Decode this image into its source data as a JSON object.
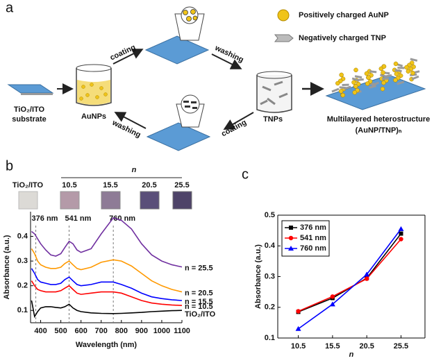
{
  "diagram": {
    "panel_label": "a",
    "legend": [
      "Positively charged AuNP",
      "Negatively charged TNP"
    ],
    "steps": [
      "coating",
      "washing",
      "coating",
      "washing"
    ],
    "substrate": [
      "TiO₂/ITO",
      "substrate"
    ],
    "beakers": [
      "AuNPs",
      "TNPs"
    ],
    "product": [
      "Multilayered heterostructure",
      "(AuNP/TNP)ₙ"
    ]
  },
  "photos": {
    "panel_label": "b",
    "heading": "n",
    "labels": [
      "TiO₂/ITO",
      "10.5",
      "15.5",
      "20.5",
      "25.5"
    ]
  },
  "chart_data": [
    {
      "type": "line",
      "x_label": "Wavelength (nm)",
      "y_label": "Absorbance (a.u.)",
      "xlim": [
        350,
        1100
      ],
      "ylim": [
        0.05,
        0.5
      ],
      "xticks": [
        400,
        500,
        600,
        700,
        800,
        900,
        1000,
        1100
      ],
      "yticks": [
        0.1,
        0.2,
        0.3,
        0.4
      ],
      "vlines": [
        {
          "value": 376,
          "label": "376 nm"
        },
        {
          "value": 541,
          "label": "541 nm"
        },
        {
          "value": 760,
          "label": "760 nm"
        }
      ],
      "series_labels": "end",
      "markers": false,
      "x": [
        355,
        370,
        385,
        400,
        425,
        450,
        475,
        500,
        520,
        541,
        560,
        580,
        600,
        650,
        700,
        760,
        800,
        850,
        900,
        950,
        1000,
        1050,
        1100
      ],
      "series": [
        {
          "name": "n = 25.5",
          "color": "#7030a0",
          "values": [
            0.42,
            0.41,
            0.39,
            0.37,
            0.345,
            0.325,
            0.32,
            0.33,
            0.355,
            0.38,
            0.37,
            0.345,
            0.335,
            0.35,
            0.41,
            0.475,
            0.465,
            0.43,
            0.37,
            0.325,
            0.3,
            0.285,
            0.276
          ]
        },
        {
          "name": "n = 20.5",
          "color": "#ff9900",
          "values": [
            0.35,
            0.33,
            0.3,
            0.285,
            0.275,
            0.27,
            0.27,
            0.275,
            0.29,
            0.3,
            0.285,
            0.27,
            0.265,
            0.275,
            0.295,
            0.305,
            0.3,
            0.28,
            0.25,
            0.22,
            0.2,
            0.185,
            0.175
          ]
        },
        {
          "name": "n = 15.5",
          "color": "#0000ff",
          "values": [
            0.27,
            0.25,
            0.225,
            0.215,
            0.21,
            0.205,
            0.205,
            0.21,
            0.225,
            0.235,
            0.22,
            0.205,
            0.2,
            0.205,
            0.215,
            0.215,
            0.205,
            0.19,
            0.17,
            0.155,
            0.148,
            0.143,
            0.14
          ]
        },
        {
          "name": "n = 10.5",
          "color": "#ff0000",
          "values": [
            0.22,
            0.2,
            0.185,
            0.18,
            0.175,
            0.175,
            0.175,
            0.18,
            0.19,
            0.2,
            0.185,
            0.17,
            0.165,
            0.17,
            0.175,
            0.175,
            0.17,
            0.155,
            0.14,
            0.13,
            0.125,
            0.122,
            0.12
          ]
        },
        {
          "name": "TiO₂/ITO",
          "color": "#000000",
          "values": [
            0.14,
            0.075,
            0.095,
            0.11,
            0.115,
            0.115,
            0.112,
            0.11,
            0.115,
            0.125,
            0.11,
            0.1,
            0.095,
            0.09,
            0.088,
            0.087,
            0.088,
            0.09,
            0.092,
            0.095,
            0.097,
            0.099,
            0.1
          ]
        }
      ]
    },
    {
      "type": "line",
      "panel_label": "c",
      "x_label": "n",
      "y_label": "Absorbance (a.u.)",
      "xlim": [
        7.5,
        29
      ],
      "ylim": [
        0.1,
        0.5
      ],
      "xticks": [
        10.5,
        15.5,
        20.5,
        25.5
      ],
      "yticks": [
        0.1,
        0.2,
        0.3,
        0.4,
        0.5
      ],
      "legend": "upper left",
      "markers": true,
      "box": true,
      "x": [
        10.5,
        15.5,
        20.5,
        25.5
      ],
      "series": [
        {
          "name": "376 nm",
          "color": "#000000",
          "marker": "square",
          "values": [
            0.185,
            0.23,
            0.295,
            0.44
          ]
        },
        {
          "name": "541 nm",
          "color": "#ff0000",
          "marker": "circle",
          "values": [
            0.187,
            0.235,
            0.293,
            0.422
          ]
        },
        {
          "name": "760 nm",
          "color": "#0000ff",
          "marker": "triangle",
          "values": [
            0.13,
            0.21,
            0.307,
            0.455
          ]
        }
      ]
    }
  ]
}
